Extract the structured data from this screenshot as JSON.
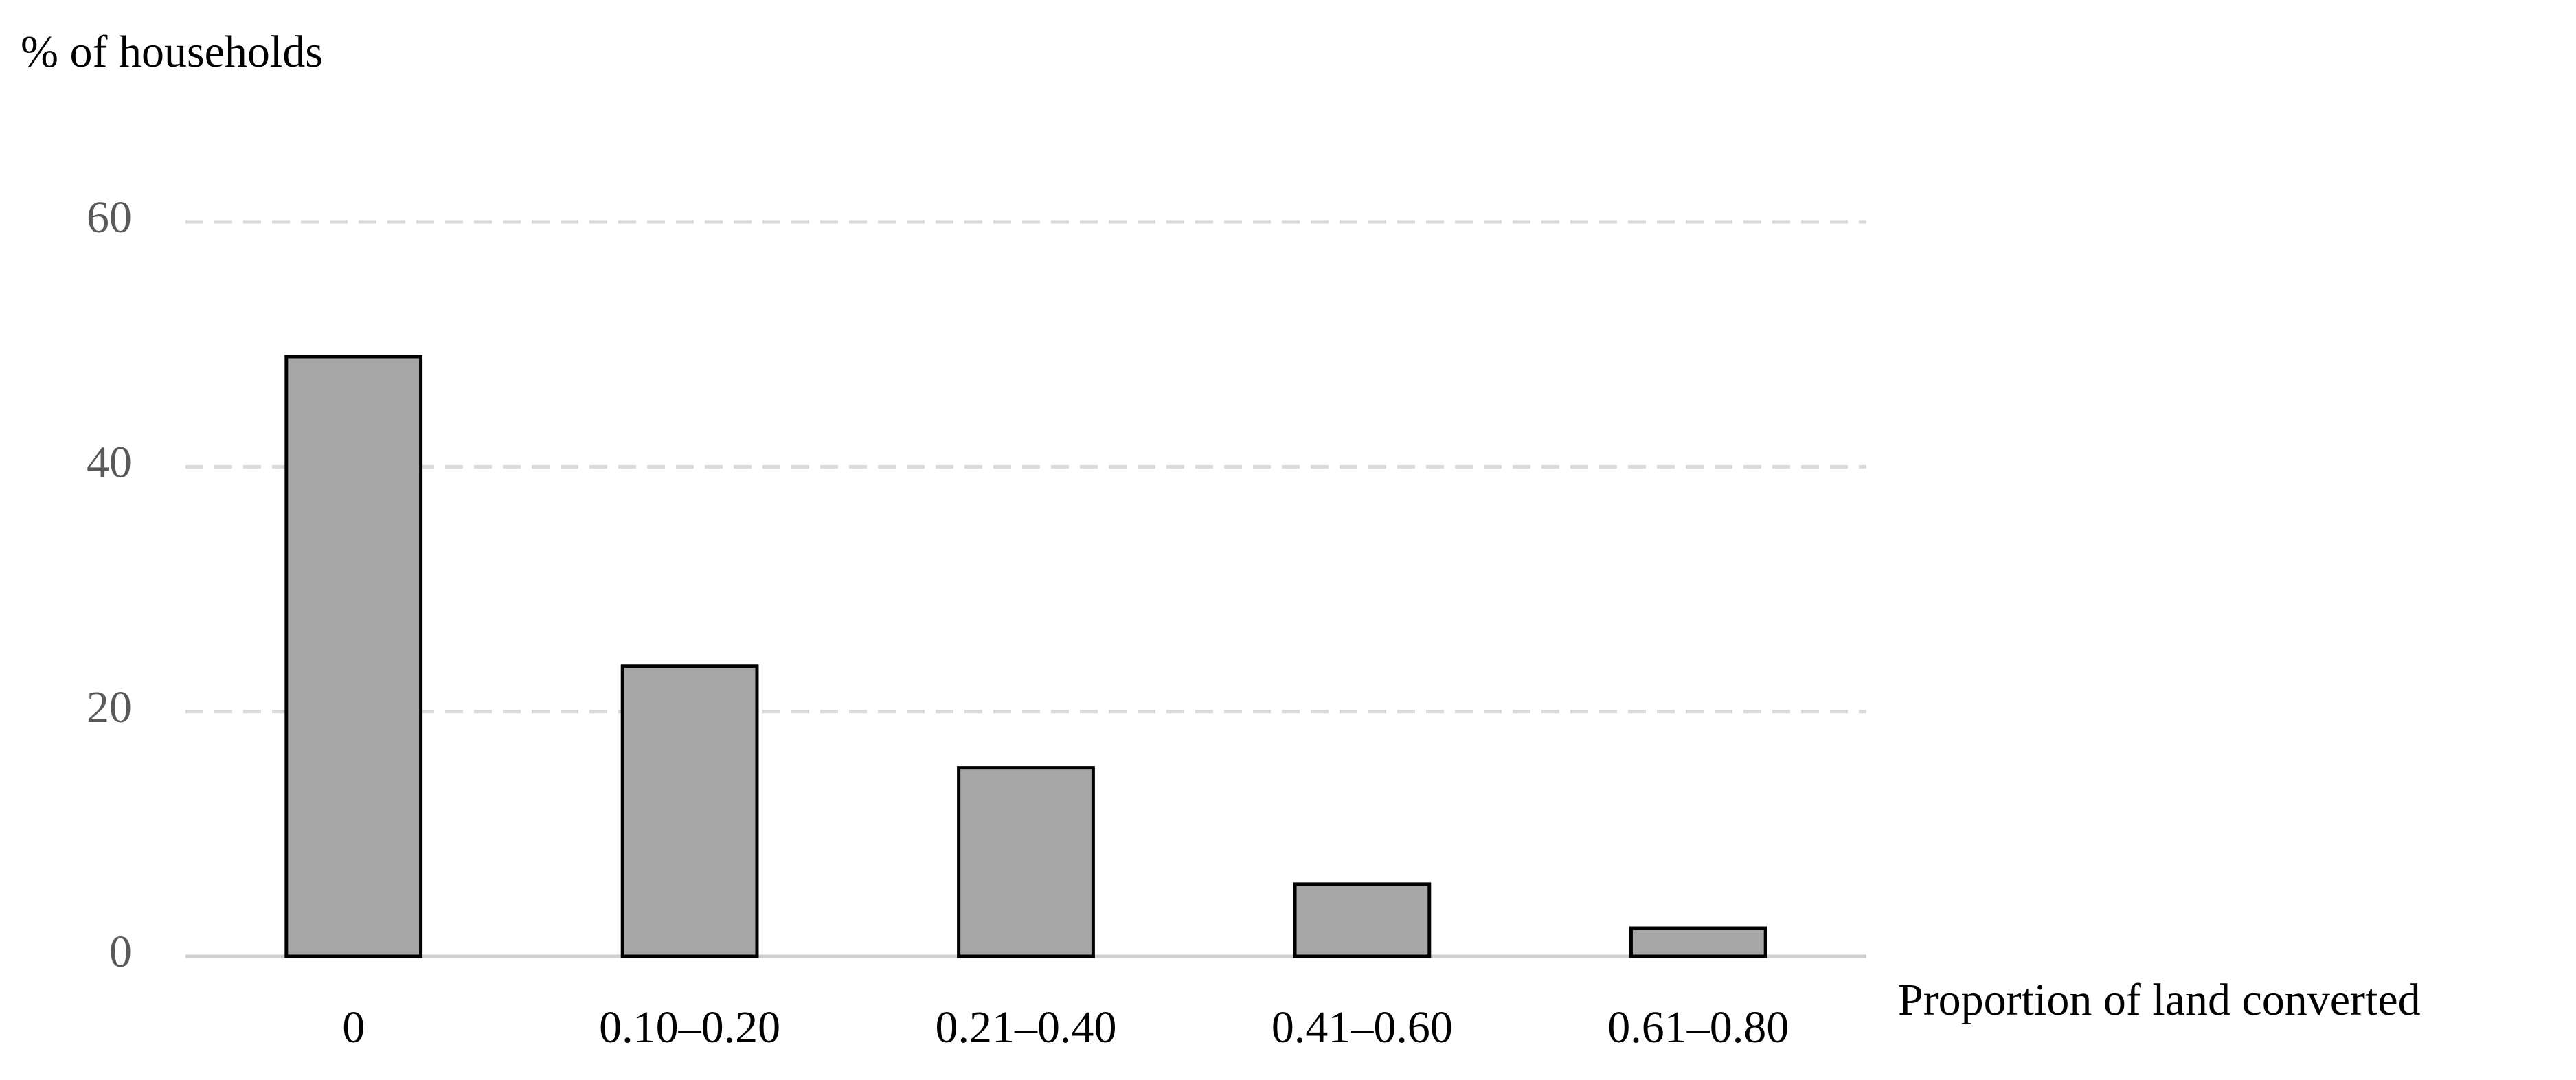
{
  "chart_data": {
    "type": "bar",
    "y_label": "% of households",
    "x_label": "Proportion of land converted",
    "categories": [
      "0",
      "0.10–0.20",
      "0.21–0.40",
      "0.41–0.60",
      "0.61–0.80"
    ],
    "values": [
      49,
      23.7,
      15.4,
      5.9,
      2.3
    ],
    "color": "#a6a6a6",
    "ylim": [
      0,
      60
    ],
    "yticks": [
      0,
      20,
      40,
      60
    ],
    "grid": true
  }
}
